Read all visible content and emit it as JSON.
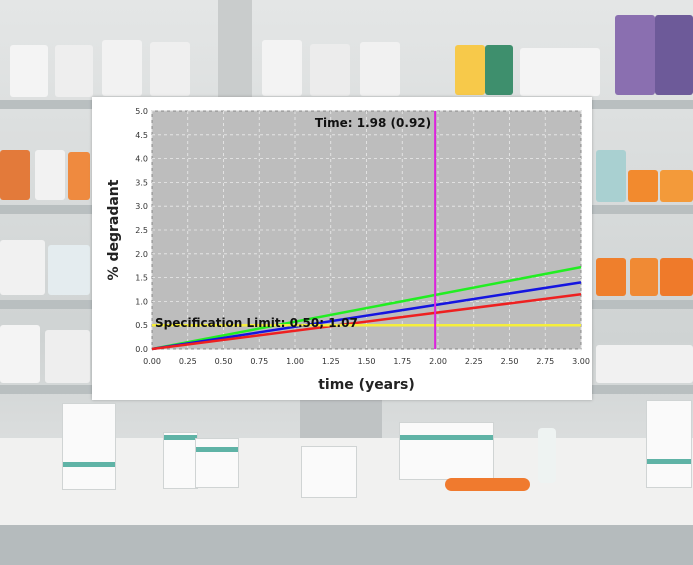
{
  "chart_data": {
    "type": "line",
    "xlabel": "time (years)",
    "ylabel": "% degradant",
    "xlim": [
      0,
      3
    ],
    "ylim": [
      0,
      5
    ],
    "x_ticks": [
      "0.00",
      "0.25",
      "0.50",
      "0.75",
      "1.00",
      "1.25",
      "1.50",
      "1.75",
      "2.00",
      "2.25",
      "2.50",
      "2.75",
      "3.00"
    ],
    "y_ticks": [
      "0.0",
      "0.5",
      "1.0",
      "1.5",
      "2.0",
      "2.5",
      "3.0",
      "3.5",
      "4.0",
      "4.5",
      "5.0"
    ],
    "grid": true,
    "background": "#bdbdbd",
    "series": [
      {
        "color": "#22ee22",
        "x": [
          0,
          3
        ],
        "y": [
          0,
          1.72
        ]
      },
      {
        "color": "#1515e0",
        "x": [
          0,
          3
        ],
        "y": [
          0,
          1.4
        ]
      },
      {
        "color": "#ee2020",
        "x": [
          0,
          3
        ],
        "y": [
          0,
          1.15
        ]
      },
      {
        "color": "#f5ee3a",
        "x": [
          0,
          3
        ],
        "y": [
          0.5,
          0.5
        ]
      }
    ],
    "vline": {
      "x": 1.98,
      "color": "#dd22dd"
    },
    "annotations": {
      "time": "Time: 1.98 (0.92)",
      "spec": "Specification Limit: 0.50; 1.07"
    }
  }
}
